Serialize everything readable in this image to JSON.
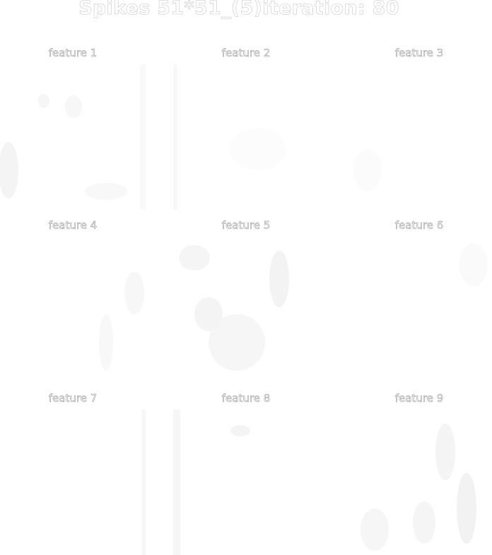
{
  "figure": {
    "title": "Spikes 51*51_(5)iteration: 80"
  },
  "panels": [
    {
      "title": "feature 1"
    },
    {
      "title": "feature 2"
    },
    {
      "title": "feature 3"
    },
    {
      "title": "feature 4"
    },
    {
      "title": "feature 5"
    },
    {
      "title": "feature 6"
    },
    {
      "title": "feature 7"
    },
    {
      "title": "feature 8"
    },
    {
      "title": "feature 9"
    }
  ]
}
